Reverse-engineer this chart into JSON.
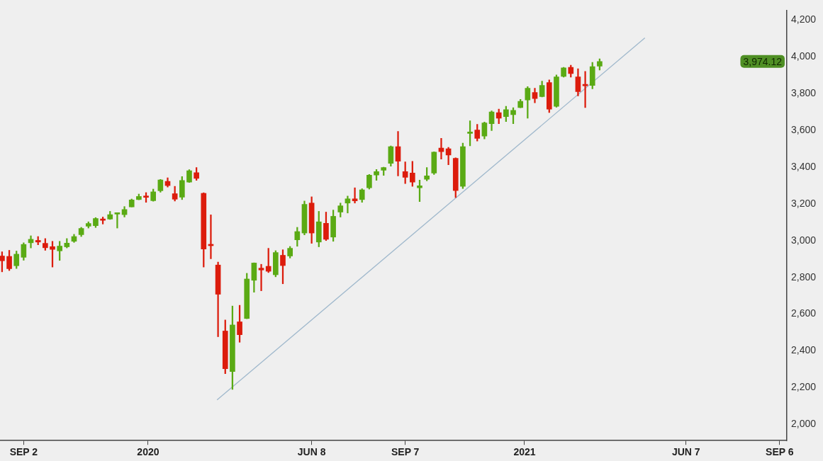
{
  "chart_data": {
    "type": "candlestick",
    "x": [
      "2019-08-12",
      "2019-08-19",
      "2019-08-26",
      "2019-09-02",
      "2019-09-09",
      "2019-09-16",
      "2019-09-23",
      "2019-09-30",
      "2019-10-07",
      "2019-10-14",
      "2019-10-21",
      "2019-10-28",
      "2019-11-04",
      "2019-11-11",
      "2019-11-18",
      "2019-11-25",
      "2019-12-02",
      "2019-12-09",
      "2019-12-16",
      "2019-12-23",
      "2019-12-30",
      "2020-01-06",
      "2020-01-13",
      "2020-01-20",
      "2020-01-27",
      "2020-02-03",
      "2020-02-10",
      "2020-02-17",
      "2020-02-24",
      "2020-03-02",
      "2020-03-09",
      "2020-03-16",
      "2020-03-23",
      "2020-03-30",
      "2020-04-06",
      "2020-04-13",
      "2020-04-20",
      "2020-04-27",
      "2020-05-04",
      "2020-05-11",
      "2020-05-18",
      "2020-05-25",
      "2020-06-01",
      "2020-06-08",
      "2020-06-15",
      "2020-06-22",
      "2020-06-29",
      "2020-07-06",
      "2020-07-13",
      "2020-07-20",
      "2020-07-27",
      "2020-08-03",
      "2020-08-10",
      "2020-08-17",
      "2020-08-24",
      "2020-08-31",
      "2020-09-07",
      "2020-09-14",
      "2020-09-21",
      "2020-09-28",
      "2020-10-05",
      "2020-10-12",
      "2020-10-19",
      "2020-10-26",
      "2020-11-02",
      "2020-11-09",
      "2020-11-16",
      "2020-11-23",
      "2020-11-30",
      "2020-12-07",
      "2020-12-14",
      "2020-12-21",
      "2020-12-28",
      "2021-01-04",
      "2021-01-11",
      "2021-01-18",
      "2021-01-25",
      "2021-02-01",
      "2021-02-08",
      "2021-02-15",
      "2021-02-22",
      "2021-03-01",
      "2021-03-08",
      "2021-03-15"
    ],
    "ohlc": [
      [
        2916,
        2939,
        2830,
        2890
      ],
      [
        2914,
        2947,
        2837,
        2847
      ],
      [
        2863,
        2943,
        2848,
        2926
      ],
      [
        2909,
        2988,
        2893,
        2979
      ],
      [
        2988,
        3026,
        2960,
        3007
      ],
      [
        3001,
        3022,
        2977,
        2992
      ],
      [
        2985,
        3011,
        2947,
        2961
      ],
      [
        2967,
        2996,
        2856,
        2952
      ],
      [
        2944,
        2996,
        2892,
        2970
      ],
      [
        2966,
        3011,
        2960,
        2986
      ],
      [
        2996,
        3034,
        2990,
        3022
      ],
      [
        3032,
        3072,
        3022,
        3066
      ],
      [
        3078,
        3102,
        3068,
        3093
      ],
      [
        3081,
        3125,
        3071,
        3120
      ],
      [
        3117,
        3128,
        3090,
        3110
      ],
      [
        3117,
        3159,
        3115,
        3141
      ],
      [
        3144,
        3150,
        3068,
        3146
      ],
      [
        3141,
        3185,
        3128,
        3169
      ],
      [
        3183,
        3226,
        3183,
        3221
      ],
      [
        3223,
        3253,
        3222,
        3240
      ],
      [
        3240,
        3261,
        3208,
        3235
      ],
      [
        3217,
        3280,
        3214,
        3265
      ],
      [
        3271,
        3333,
        3263,
        3330
      ],
      [
        3322,
        3341,
        3291,
        3299
      ],
      [
        3255,
        3295,
        3215,
        3225
      ],
      [
        3236,
        3348,
        3223,
        3327
      ],
      [
        3318,
        3386,
        3316,
        3380
      ],
      [
        3369,
        3397,
        3328,
        3338
      ],
      [
        3257,
        3260,
        2856,
        2954
      ],
      [
        2974,
        3140,
        2901,
        2972
      ],
      [
        2867,
        2883,
        2477,
        2708
      ],
      [
        2508,
        2568,
        2276,
        2303
      ],
      [
        2288,
        2644,
        2190,
        2541
      ],
      [
        2558,
        2648,
        2447,
        2488
      ],
      [
        2576,
        2822,
        2575,
        2791
      ],
      [
        2784,
        2879,
        2719,
        2878
      ],
      [
        2850,
        2871,
        2727,
        2840
      ],
      [
        2860,
        2958,
        2826,
        2833
      ],
      [
        2814,
        2945,
        2803,
        2935
      ],
      [
        2920,
        2950,
        2765,
        2864
      ],
      [
        2916,
        2968,
        2905,
        2958
      ],
      [
        3004,
        3072,
        2969,
        3049
      ],
      [
        3041,
        3215,
        3031,
        3197
      ],
      [
        3204,
        3238,
        2985,
        3041
      ],
      [
        2992,
        3159,
        2966,
        3102
      ],
      [
        3094,
        3155,
        3000,
        3007
      ],
      [
        3019,
        3166,
        2996,
        3132
      ],
      [
        3155,
        3204,
        3128,
        3189
      ],
      [
        3204,
        3242,
        3150,
        3227
      ],
      [
        3227,
        3287,
        3204,
        3216
      ],
      [
        3223,
        3282,
        3208,
        3276
      ],
      [
        3287,
        3360,
        3280,
        3356
      ],
      [
        3356,
        3387,
        3328,
        3375
      ],
      [
        3382,
        3399,
        3355,
        3397
      ],
      [
        3420,
        3515,
        3405,
        3511
      ],
      [
        3511,
        3594,
        3352,
        3432
      ],
      [
        3375,
        3428,
        3310,
        3344
      ],
      [
        3367,
        3431,
        3295,
        3318
      ],
      [
        3287,
        3329,
        3212,
        3298
      ],
      [
        3333,
        3397,
        3325,
        3352
      ],
      [
        3367,
        3483,
        3359,
        3481
      ],
      [
        3503,
        3556,
        3443,
        3484
      ],
      [
        3499,
        3507,
        3412,
        3465
      ],
      [
        3447,
        3450,
        3234,
        3272
      ],
      [
        3295,
        3530,
        3283,
        3511
      ],
      [
        3583,
        3651,
        3515,
        3586
      ],
      [
        3601,
        3632,
        3541,
        3556
      ],
      [
        3568,
        3645,
        3553,
        3640
      ],
      [
        3636,
        3705,
        3598,
        3700
      ],
      [
        3696,
        3715,
        3636,
        3666
      ],
      [
        3674,
        3730,
        3647,
        3712
      ],
      [
        3685,
        3723,
        3636,
        3708
      ],
      [
        3723,
        3768,
        3722,
        3757
      ],
      [
        3765,
        3837,
        3666,
        3829
      ],
      [
        3806,
        3829,
        3749,
        3772
      ],
      [
        3783,
        3867,
        3781,
        3844
      ],
      [
        3859,
        3874,
        3696,
        3715
      ],
      [
        3730,
        3901,
        3725,
        3890
      ],
      [
        3893,
        3942,
        3889,
        3939
      ],
      [
        3942,
        3954,
        3889,
        3908
      ],
      [
        3890,
        3935,
        3787,
        3810
      ],
      [
        3846,
        3920,
        3723,
        3842
      ],
      [
        3844,
        3969,
        3825,
        3946
      ],
      [
        3949,
        3988,
        3927,
        3974.12
      ]
    ],
    "colors": [
      "#dc1c0c",
      "#dc1c0c",
      "#5aaa14",
      "#5aaa14",
      "#5aaa14",
      "#dc1c0c",
      "#dc1c0c",
      "#dc1c0c",
      "#5aaa14",
      "#5aaa14",
      "#5aaa14",
      "#5aaa14",
      "#5aaa14",
      "#5aaa14",
      "#dc1c0c",
      "#5aaa14",
      "#5aaa14",
      "#5aaa14",
      "#5aaa14",
      "#5aaa14",
      "#dc1c0c",
      "#5aaa14",
      "#5aaa14",
      "#dc1c0c",
      "#dc1c0c",
      "#5aaa14",
      "#5aaa14",
      "#dc1c0c",
      "#dc1c0c",
      "#dc1c0c",
      "#dc1c0c",
      "#dc1c0c",
      "#5aaa14",
      "#dc1c0c",
      "#5aaa14",
      "#5aaa14",
      "#dc1c0c",
      "#dc1c0c",
      "#5aaa14",
      "#dc1c0c",
      "#5aaa14",
      "#5aaa14",
      "#5aaa14",
      "#dc1c0c",
      "#5aaa14",
      "#dc1c0c",
      "#5aaa14",
      "#5aaa14",
      "#5aaa14",
      "#dc1c0c",
      "#5aaa14",
      "#5aaa14",
      "#5aaa14",
      "#5aaa14",
      "#5aaa14",
      "#dc1c0c",
      "#dc1c0c",
      "#dc1c0c",
      "#5aaa14",
      "#5aaa14",
      "#5aaa14",
      "#dc1c0c",
      "#dc1c0c",
      "#dc1c0c",
      "#5aaa14",
      "#5aaa14",
      "#dc1c0c",
      "#5aaa14",
      "#5aaa14",
      "#dc1c0c",
      "#5aaa14",
      "#5aaa14",
      "#5aaa14",
      "#5aaa14",
      "#dc1c0c",
      "#5aaa14",
      "#dc1c0c",
      "#5aaa14",
      "#5aaa14",
      "#dc1c0c",
      "#dc1c0c",
      "#dc1c0c",
      "#5aaa14",
      "#5aaa14"
    ],
    "series": [
      {
        "type": "line",
        "x": [
          "2020-03-08",
          "2021-04-28"
        ],
        "values": [
          2133,
          4102
        ],
        "color": "#9fb8cc"
      }
    ],
    "xlim": [
      "2019-08-10",
      "2021-09-13"
    ],
    "xticks": [
      {
        "value": "2019-09-02",
        "label": "SEP 2"
      },
      {
        "value": "2020-01-01",
        "label": "2020"
      },
      {
        "value": "2020-06-08",
        "label": "JUN 8"
      },
      {
        "value": "2020-09-07",
        "label": "SEP 7"
      },
      {
        "value": "2021-01-01",
        "label": "2021"
      },
      {
        "value": "2021-06-07",
        "label": "JUN 7"
      },
      {
        "value": "2021-09-06",
        "label": "SEP 6"
      }
    ],
    "ylim": [
      1912,
      4253
    ],
    "yticks": [
      {
        "value": 2000,
        "label": "2,000"
      },
      {
        "value": 2200,
        "label": "2,200"
      },
      {
        "value": 2400,
        "label": "2,400"
      },
      {
        "value": 2600,
        "label": "2,600"
      },
      {
        "value": 2800,
        "label": "2,800"
      },
      {
        "value": 3000,
        "label": "3,000"
      },
      {
        "value": 3200,
        "label": "3,200"
      },
      {
        "value": 3400,
        "label": "3,400"
      },
      {
        "value": 3600,
        "label": "3,600"
      },
      {
        "value": 3800,
        "label": "3,800"
      },
      {
        "value": 4000,
        "label": "4,000"
      },
      {
        "value": 4200,
        "label": "4,200"
      }
    ],
    "annotations": [
      "3,974.12"
    ],
    "legend": false
  }
}
